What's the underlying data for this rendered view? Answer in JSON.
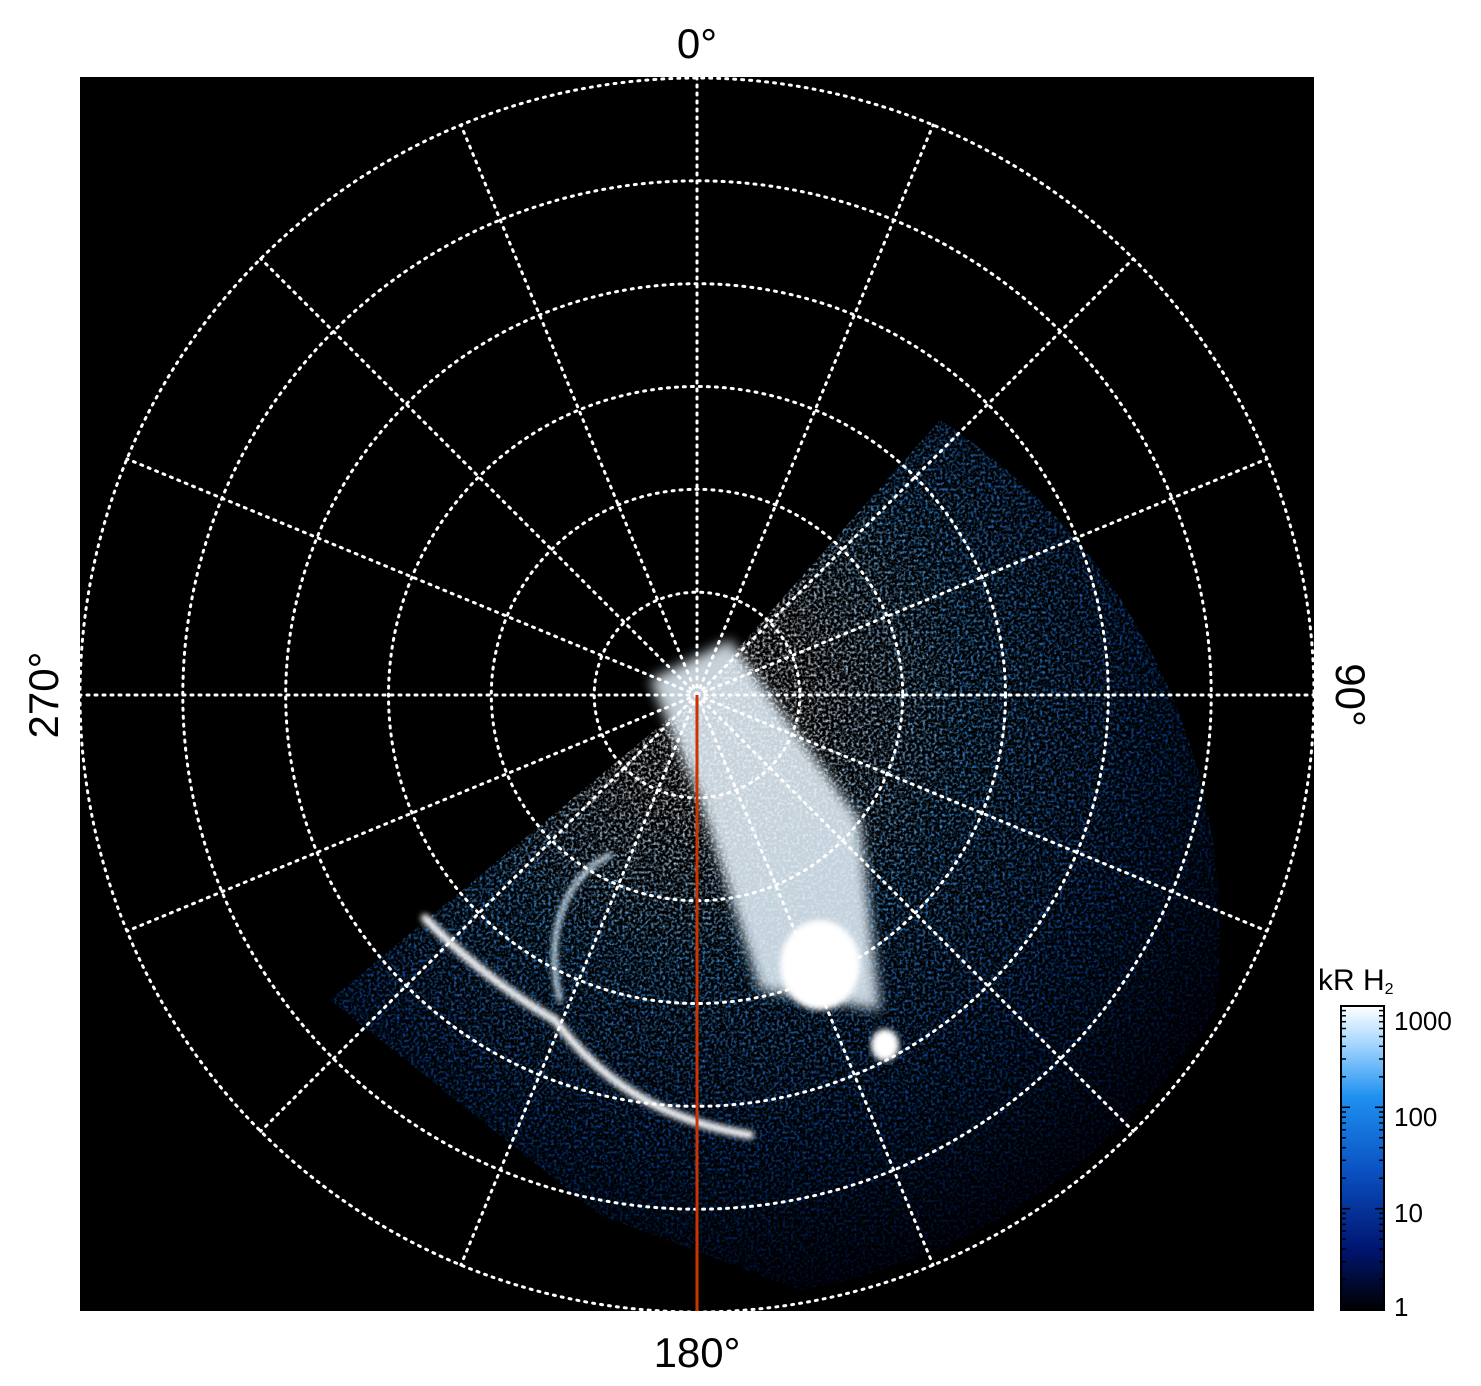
{
  "figure": {
    "labels": {
      "top": "0°",
      "bottom": "180°",
      "left": "270°",
      "right": "90°"
    },
    "colorbar": {
      "title_main": "kR H",
      "title_sub": "2",
      "ticks": [
        "1000",
        "100",
        "10",
        "1"
      ],
      "scale": "log"
    },
    "colors": {
      "background": "#000000",
      "grid": "#ffffff",
      "meridian_line": "#cc3300",
      "aurora_low": "#001050",
      "aurora_mid": "#1a7fe6",
      "aurora_high": "#ffffff"
    },
    "grid": {
      "style": "dotted",
      "meridian_step_deg": 22.5,
      "circles": 6
    }
  }
}
